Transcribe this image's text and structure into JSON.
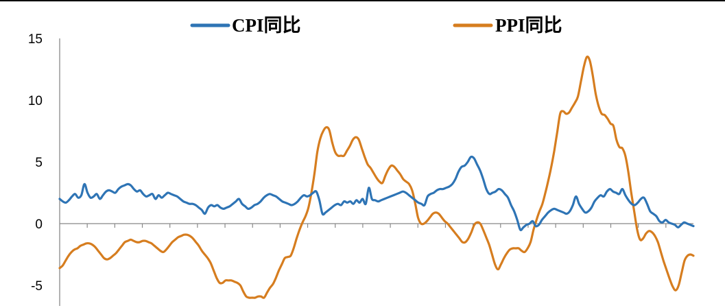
{
  "chart_data": {
    "type": "line",
    "title": "",
    "xlabel": "",
    "ylabel": "",
    "ylim": [
      -6.5,
      15
    ],
    "yticks": [
      "15",
      "10",
      "5",
      "0",
      "-5"
    ],
    "ytick_values": [
      15,
      10,
      5,
      0,
      -5
    ],
    "x_tick_count": 23,
    "grid": false,
    "legend_position": "top",
    "series": [
      {
        "name": "CPI同比",
        "color": "#2e74b5",
        "values": [
          2.0,
          1.8,
          1.7,
          1.9,
          2.2,
          2.4,
          2.1,
          2.3,
          3.2,
          2.5,
          2.1,
          2.2,
          2.4,
          2.0,
          2.3,
          2.6,
          2.7,
          2.6,
          2.5,
          2.8,
          3.0,
          3.1,
          3.2,
          3.1,
          2.8,
          2.6,
          2.7,
          2.4,
          2.2,
          2.3,
          2.4,
          2.0,
          2.3,
          2.1,
          2.3,
          2.5,
          2.4,
          2.3,
          2.2,
          2.0,
          1.8,
          1.7,
          1.6,
          1.6,
          1.5,
          1.3,
          1.1,
          0.8,
          1.3,
          1.5,
          1.4,
          1.5,
          1.3,
          1.2,
          1.3,
          1.4,
          1.6,
          1.8,
          2.0,
          1.6,
          1.4,
          1.2,
          1.3,
          1.5,
          1.6,
          1.8,
          2.1,
          2.3,
          2.4,
          2.3,
          2.2,
          2.0,
          1.8,
          1.7,
          1.6,
          1.5,
          1.6,
          1.8,
          2.1,
          2.3,
          2.2,
          2.3,
          2.5,
          2.6,
          1.9,
          0.8,
          0.9,
          1.1,
          1.3,
          1.5,
          1.6,
          1.5,
          1.8,
          1.7,
          1.8,
          1.6,
          1.9,
          1.7,
          2.0,
          1.6,
          2.9,
          2.0,
          1.9,
          1.8,
          1.9,
          2.0,
          2.1,
          2.2,
          2.3,
          2.4,
          2.5,
          2.6,
          2.5,
          2.3,
          2.1,
          1.9,
          1.7,
          1.6,
          1.5,
          2.2,
          2.4,
          2.5,
          2.7,
          2.8,
          2.8,
          2.9,
          3.0,
          3.2,
          3.6,
          4.2,
          4.6,
          4.7,
          5.0,
          5.4,
          5.3,
          4.8,
          4.3,
          3.6,
          2.8,
          2.4,
          2.5,
          2.6,
          2.8,
          2.7,
          2.4,
          2.1,
          1.5,
          1.0,
          0.3,
          -0.5,
          -0.3,
          -0.1,
          0.0,
          0.2,
          -0.2,
          -0.1,
          0.3,
          0.6,
          0.9,
          1.1,
          1.2,
          1.1,
          1.0,
          0.9,
          0.8,
          1.0,
          1.5,
          2.2,
          1.6,
          1.2,
          0.9,
          1.0,
          1.3,
          1.8,
          2.1,
          2.3,
          2.2,
          2.6,
          2.8,
          2.6,
          2.5,
          2.4,
          2.8,
          2.3,
          1.9,
          1.6,
          1.5,
          1.7,
          2.0,
          2.1,
          1.6,
          1.0,
          0.8,
          0.6,
          0.2,
          0.1,
          0.3,
          0.1,
          0.0,
          -0.1,
          -0.3,
          -0.1,
          0.1,
          0.0,
          -0.1,
          -0.2
        ]
      },
      {
        "name": "PPI同比",
        "color": "#d67d1f",
        "values": [
          -3.6,
          -3.4,
          -3.0,
          -2.6,
          -2.3,
          -2.1,
          -2.0,
          -1.8,
          -1.7,
          -1.6,
          -1.6,
          -1.7,
          -1.9,
          -2.2,
          -2.5,
          -2.8,
          -2.9,
          -2.8,
          -2.6,
          -2.4,
          -2.1,
          -1.8,
          -1.5,
          -1.4,
          -1.3,
          -1.4,
          -1.5,
          -1.5,
          -1.4,
          -1.4,
          -1.5,
          -1.6,
          -1.8,
          -2.0,
          -2.2,
          -2.3,
          -2.1,
          -1.8,
          -1.5,
          -1.3,
          -1.1,
          -1.0,
          -0.9,
          -0.9,
          -1.0,
          -1.2,
          -1.5,
          -1.8,
          -2.2,
          -2.5,
          -2.8,
          -3.2,
          -3.8,
          -4.4,
          -4.8,
          -4.8,
          -4.6,
          -4.6,
          -4.6,
          -4.7,
          -4.8,
          -5.0,
          -5.5,
          -5.9,
          -6.0,
          -6.0,
          -6.0,
          -5.9,
          -5.9,
          -6.0,
          -5.6,
          -5.2,
          -4.9,
          -4.4,
          -3.8,
          -3.3,
          -2.8,
          -2.7,
          -2.6,
          -2.0,
          -1.2,
          -0.5,
          0.1,
          0.6,
          1.3,
          2.5,
          4.0,
          5.8,
          6.9,
          7.5,
          7.8,
          7.6,
          6.6,
          5.8,
          5.5,
          5.5,
          5.5,
          5.9,
          6.3,
          6.8,
          7.0,
          6.8,
          6.1,
          5.4,
          4.8,
          4.5,
          4.1,
          3.7,
          3.4,
          3.3,
          3.9,
          4.4,
          4.7,
          4.6,
          4.3,
          4.0,
          3.6,
          3.4,
          3.2,
          2.7,
          1.7,
          0.5,
          0.0,
          0.0,
          0.2,
          0.5,
          0.8,
          0.9,
          0.8,
          0.5,
          0.2,
          0.0,
          -0.3,
          -0.6,
          -0.9,
          -1.2,
          -1.5,
          -1.5,
          -1.2,
          -0.7,
          -0.1,
          0.1,
          0.0,
          -0.5,
          -1.1,
          -1.7,
          -2.5,
          -3.3,
          -3.7,
          -3.3,
          -2.8,
          -2.4,
          -2.1,
          -2.0,
          -2.0,
          -2.0,
          -2.2,
          -2.3,
          -2.0,
          -1.5,
          -0.5,
          0.3,
          1.0,
          1.6,
          2.5,
          3.5,
          4.6,
          5.9,
          7.4,
          8.9,
          9.1,
          8.9,
          9.0,
          9.4,
          9.8,
          10.3,
          11.5,
          12.7,
          13.5,
          13.2,
          12.0,
          10.5,
          9.5,
          8.9,
          8.8,
          8.5,
          8.1,
          7.9,
          6.8,
          6.2,
          6.1,
          5.5,
          4.2,
          2.5,
          1.0,
          -0.5,
          -1.3,
          -1.2,
          -0.8,
          -0.6,
          -0.7,
          -1.0,
          -1.5,
          -2.3,
          -3.1,
          -3.8,
          -4.5,
          -5.1,
          -5.4,
          -5.0,
          -4.0,
          -3.0,
          -2.6,
          -2.5,
          -2.6
        ]
      }
    ]
  }
}
